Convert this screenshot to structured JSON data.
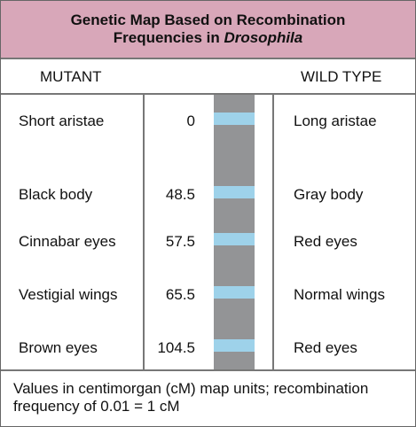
{
  "title": {
    "line1": "Genetic Map Based on Recombination",
    "line2_prefix": "Frequencies in ",
    "line2_italic": "Drosophila"
  },
  "headers": {
    "mutant": "MUTANT",
    "wild_type": "WILD TYPE"
  },
  "rows": [
    {
      "mutant": "Short aristae",
      "distance": "0",
      "wild_type": "Long aristae"
    },
    {
      "mutant": "Black body",
      "distance": "48.5",
      "wild_type": "Gray body"
    },
    {
      "mutant": "Cinnabar eyes",
      "distance": "57.5",
      "wild_type": "Red eyes"
    },
    {
      "mutant": "Vestigial wings",
      "distance": "65.5",
      "wild_type": "Normal wings"
    },
    {
      "mutant": "Brown eyes",
      "distance": "104.5",
      "wild_type": "Red eyes"
    }
  ],
  "footer": "Values in centimorgan (cM) map units; recombination frequency of 0.01 = 1 cM",
  "colors": {
    "title_background": "#d8a7b9",
    "chromosome": "#939496",
    "band": "#9ed2ea",
    "border": "#777777"
  }
}
